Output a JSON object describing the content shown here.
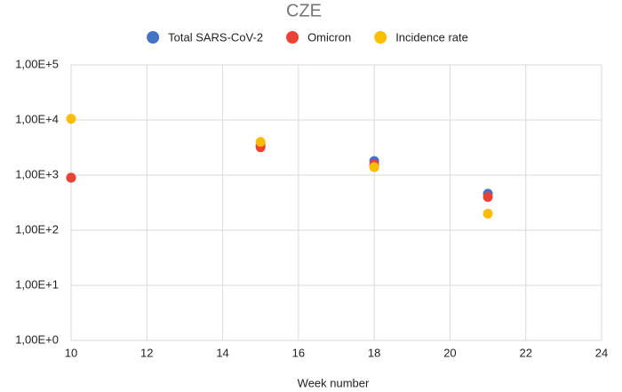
{
  "chart_data": {
    "type": "scatter",
    "title": "CZE",
    "x_label": "Week number",
    "x": [
      10,
      15,
      18,
      21
    ],
    "series": [
      {
        "name": "Total SARS-CoV-2",
        "color": "#4472c4",
        "values": [
          900,
          3500,
          1800,
          460
        ]
      },
      {
        "name": "Omicron",
        "color": "#ea4335",
        "values": [
          900,
          3200,
          1550,
          400
        ]
      },
      {
        "name": "Incidence rate",
        "color": "#fbbc04",
        "values": [
          10500,
          4000,
          1400,
          200
        ]
      }
    ],
    "xlim": [
      10,
      24
    ],
    "xticks": [
      10,
      12,
      14,
      16,
      18,
      20,
      22,
      24
    ],
    "ylim": [
      1,
      100000
    ],
    "log_y": true,
    "yticks": [
      {
        "value": 1,
        "label": "1,00E+0"
      },
      {
        "value": 10,
        "label": "1,00E+1"
      },
      {
        "value": 100,
        "label": "1,00E+2"
      },
      {
        "value": 1000,
        "label": "1,00E+3"
      },
      {
        "value": 10000,
        "label": "1,00E+4"
      },
      {
        "value": 100000,
        "label": "1,00E+5"
      }
    ],
    "grid": true,
    "legend": "top"
  }
}
